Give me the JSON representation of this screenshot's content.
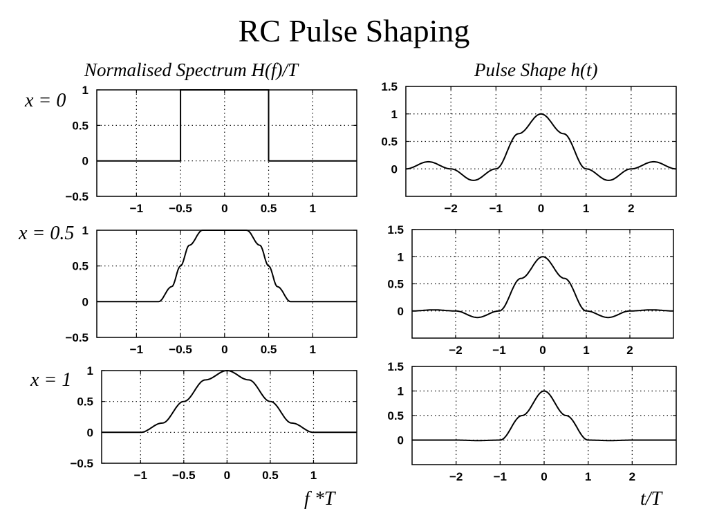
{
  "title": "RC Pulse Shaping",
  "column_titles": {
    "left": "Normalised Spectrum H(f)/T",
    "right": "Pulse Shape h(t)"
  },
  "row_labels": [
    "x = 0",
    "x = 0.5",
    "x = 1"
  ],
  "axis_labels": {
    "left_x": "f *T",
    "right_x": "t/T"
  },
  "chart_data": [
    {
      "type": "line",
      "panel": "spectrum, x = 0",
      "rolloff": 0,
      "xlim": [
        -1.45,
        1.5
      ],
      "ylim": [
        -0.5,
        1.0
      ],
      "xticks": [
        "−1",
        "−0.5",
        "0",
        "0.5",
        "1"
      ],
      "xtick_values": [
        -1,
        -0.5,
        0,
        0.5,
        1
      ],
      "yticks": [
        "−0.5",
        "0",
        "0.5",
        "1"
      ],
      "ytick_values": [
        -0.5,
        0,
        0.5,
        1
      ],
      "grid": true,
      "series": [
        {
          "x": [
            -1.45,
            -0.5,
            -0.5,
            0.5,
            0.5,
            1.5
          ],
          "y": [
            0,
            0,
            1,
            1,
            0,
            0
          ]
        }
      ]
    },
    {
      "type": "line",
      "panel": "pulse, x = 0",
      "rolloff": 0,
      "xlim": [
        -3,
        3
      ],
      "ylim": [
        -0.5,
        1.5
      ],
      "xticks": [
        "−2",
        "−1",
        "0",
        "1",
        "2"
      ],
      "xtick_values": [
        -2,
        -1,
        0,
        1,
        2
      ],
      "yticks": [
        "0",
        "0.5",
        "1",
        "1.5"
      ],
      "ytick_values": [
        0,
        0.5,
        1,
        1.5
      ],
      "grid": true,
      "series": [
        {
          "x": [
            -3,
            -2.5,
            -2,
            -1.5,
            -1,
            -0.5,
            0,
            0.5,
            1,
            1.5,
            2,
            2.5,
            3
          ],
          "y": [
            0,
            0.13,
            0,
            -0.21,
            0,
            0.64,
            1,
            0.64,
            0,
            -0.21,
            0,
            0.13,
            0
          ]
        }
      ]
    },
    {
      "type": "line",
      "panel": "spectrum, x = 0.5",
      "rolloff": 0.5,
      "xlim": [
        -1.45,
        1.5
      ],
      "ylim": [
        -0.5,
        1.0
      ],
      "xticks": [
        "−1",
        "−0.5",
        "0",
        "0.5",
        "1"
      ],
      "xtick_values": [
        -1,
        -0.5,
        0,
        0.5,
        1
      ],
      "yticks": [
        "−0.5",
        "0",
        "0.5",
        "1"
      ],
      "ytick_values": [
        -0.5,
        0,
        0.5,
        1
      ],
      "grid": true,
      "series": [
        {
          "x": [
            -1.45,
            -0.75,
            -0.6,
            -0.5,
            -0.4,
            -0.25,
            0.25,
            0.4,
            0.5,
            0.6,
            0.75,
            1.5
          ],
          "y": [
            0,
            0,
            0.21,
            0.5,
            0.79,
            1,
            1,
            0.79,
            0.5,
            0.21,
            0,
            0
          ]
        }
      ]
    },
    {
      "type": "line",
      "panel": "pulse, x = 0.5",
      "rolloff": 0.5,
      "xlim": [
        -3,
        3
      ],
      "ylim": [
        -0.5,
        1.5
      ],
      "xticks": [
        "−2",
        "−1",
        "0",
        "1",
        "2"
      ],
      "xtick_values": [
        -2,
        -1,
        0,
        1,
        2
      ],
      "yticks": [
        "0",
        "0.5",
        "1",
        "1.5"
      ],
      "ytick_values": [
        0,
        0.5,
        1,
        1.5
      ],
      "grid": true,
      "series": [
        {
          "x": [
            -3,
            -2.5,
            -2,
            -1.5,
            -1,
            -0.5,
            0,
            0.5,
            1,
            1.5,
            2,
            2.5,
            3
          ],
          "y": [
            0,
            0.02,
            0,
            -0.12,
            0,
            0.6,
            1,
            0.6,
            0,
            -0.12,
            0,
            0.02,
            0
          ]
        }
      ]
    },
    {
      "type": "line",
      "panel": "spectrum, x = 1",
      "rolloff": 1,
      "xlim": [
        -1.45,
        1.5
      ],
      "ylim": [
        -0.5,
        1.0
      ],
      "xticks": [
        "−1",
        "−0.5",
        "0",
        "0.5",
        "1"
      ],
      "xtick_values": [
        -1,
        -0.5,
        0,
        0.5,
        1
      ],
      "yticks": [
        "−0.5",
        "0",
        "0.5",
        "1"
      ],
      "ytick_values": [
        -0.5,
        0,
        0.5,
        1
      ],
      "grid": true,
      "series": [
        {
          "x": [
            -1.45,
            -1,
            -0.75,
            -0.5,
            -0.25,
            0,
            0.25,
            0.5,
            0.75,
            1,
            1.5
          ],
          "y": [
            0,
            0,
            0.15,
            0.5,
            0.85,
            1,
            0.85,
            0.5,
            0.15,
            0,
            0
          ]
        }
      ]
    },
    {
      "type": "line",
      "panel": "pulse, x = 1",
      "rolloff": 1,
      "xlim": [
        -3,
        3
      ],
      "ylim": [
        -0.5,
        1.5
      ],
      "xticks": [
        "−2",
        "−1",
        "0",
        "1",
        "2"
      ],
      "xtick_values": [
        -2,
        -1,
        0,
        1,
        2
      ],
      "yticks": [
        "0",
        "0.5",
        "1",
        "1.5"
      ],
      "ytick_values": [
        0,
        0.5,
        1,
        1.5
      ],
      "grid": true,
      "series": [
        {
          "x": [
            -3,
            -2,
            -1.5,
            -1,
            -0.5,
            0,
            0.5,
            1,
            1.5,
            2,
            3
          ],
          "y": [
            0,
            0,
            -0.01,
            0,
            0.5,
            1,
            0.5,
            0,
            -0.01,
            0,
            0
          ]
        }
      ]
    }
  ]
}
